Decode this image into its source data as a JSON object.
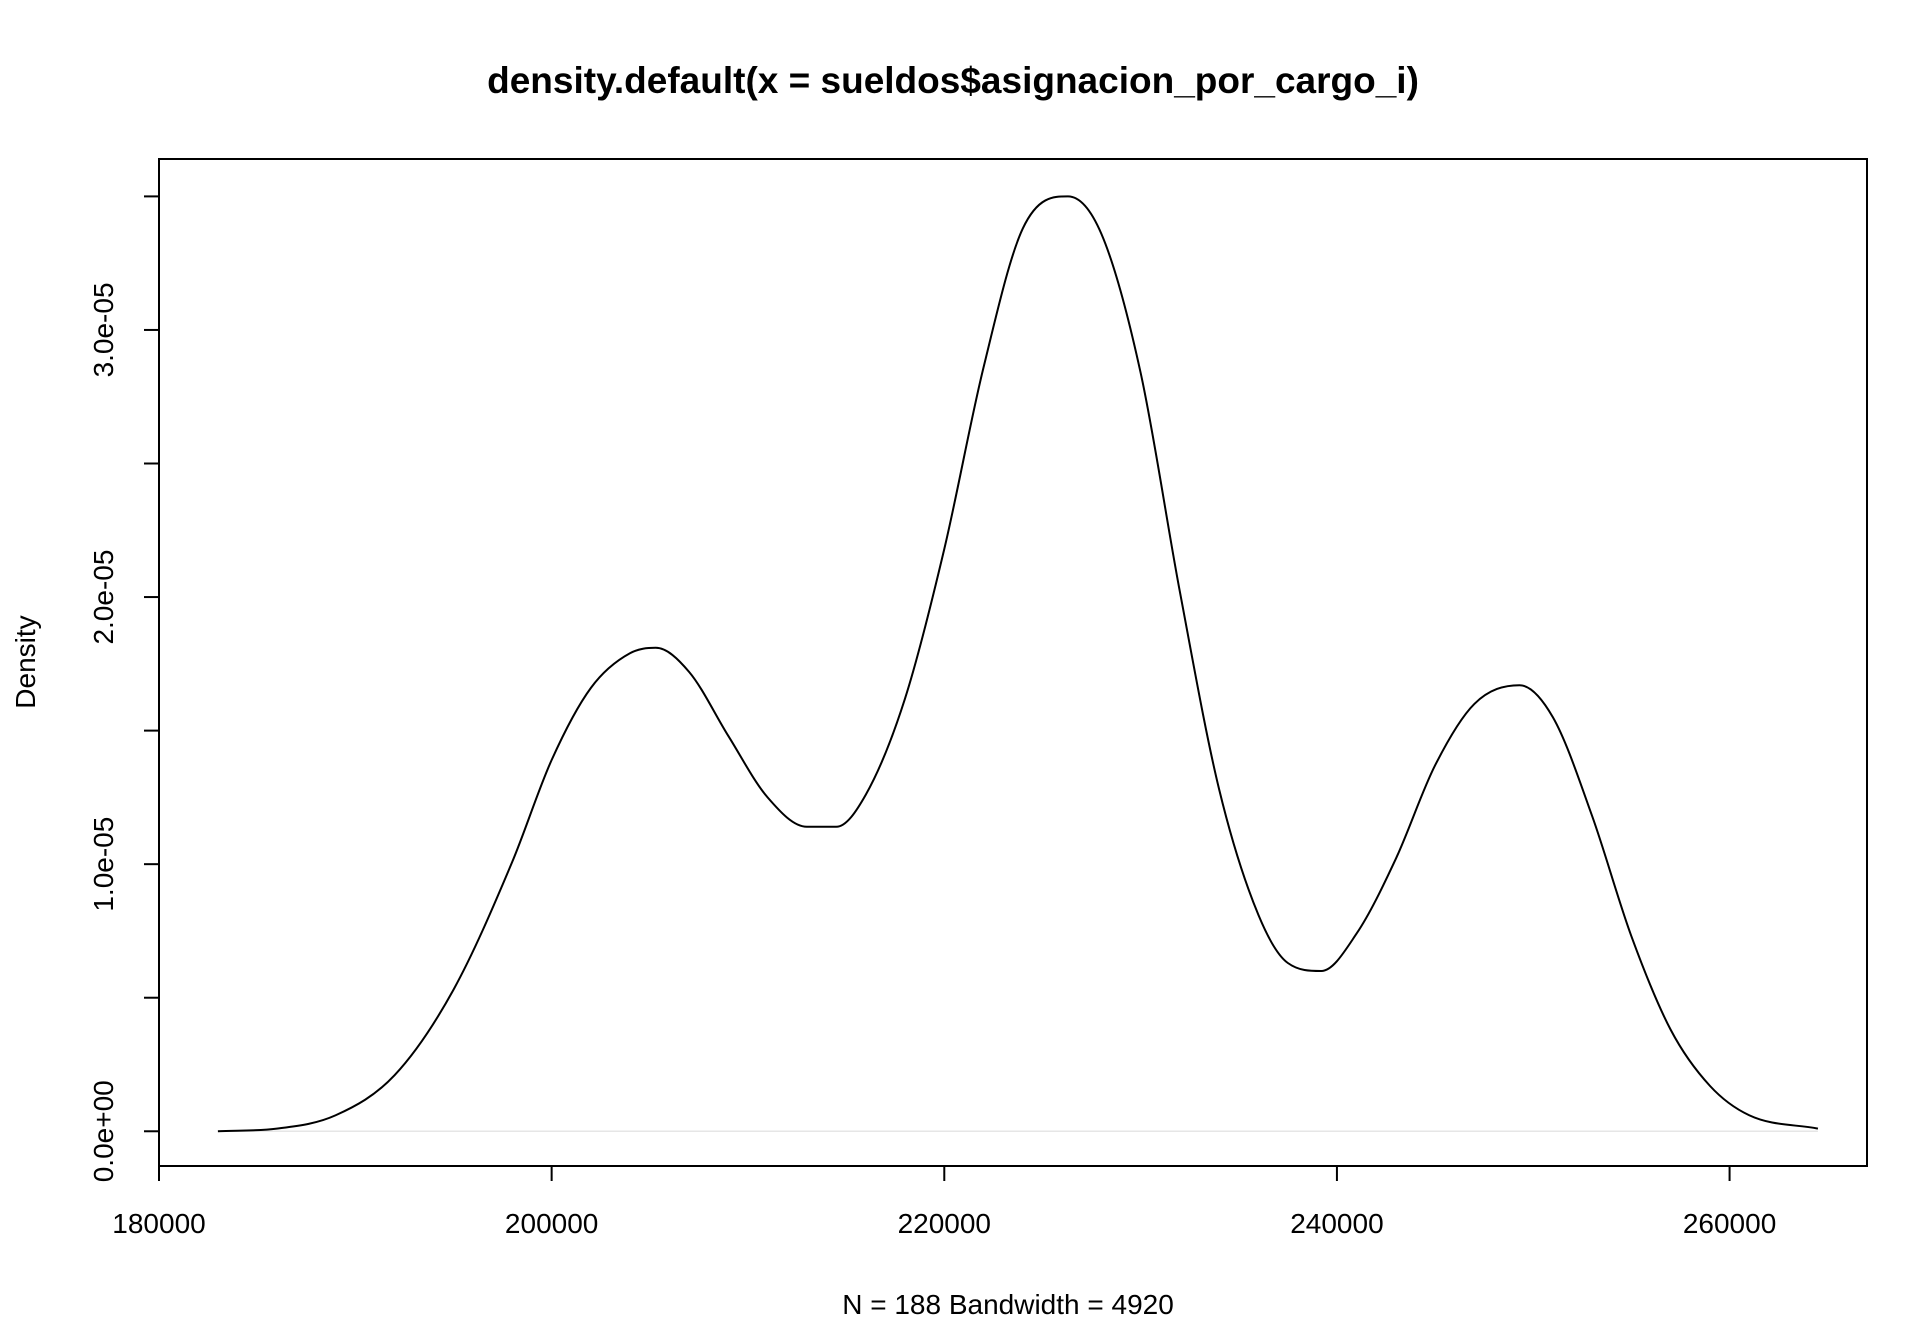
{
  "chart_data": {
    "type": "line",
    "title": "density.default(x = sueldos$asignacion_por_cargo_i)",
    "xlabel": "N = 188   Bandwidth = 4920",
    "ylabel": "Density",
    "xlim": [
      180000,
      267000
    ],
    "ylim": [
      -1.3e-06,
      3.64e-05
    ],
    "x_ticks": [
      180000,
      200000,
      220000,
      240000,
      260000
    ],
    "x_tick_labels": [
      "180000",
      "200000",
      "220000",
      "240000",
      "260000"
    ],
    "y_ticks": [
      0,
      5e-06,
      1e-05,
      1.5e-05,
      2e-05,
      2.5e-05,
      3e-05,
      3.5e-05
    ],
    "y_tick_labels": [
      "0.0e+00",
      "",
      "1.0e-05",
      "",
      "2.0e-05",
      "",
      "3.0e-05",
      ""
    ],
    "grid": false,
    "legend": false,
    "series": [
      {
        "x": [
          183000,
          186000,
          189000,
          192000,
          195000,
          198000,
          200000,
          202000,
          204000,
          205300,
          207000,
          209000,
          211000,
          213000,
          214500,
          216000,
          218000,
          220000,
          222000,
          224000,
          226300,
          228000,
          230000,
          232000,
          234000,
          236000,
          237500,
          239200,
          241000,
          243000,
          245000,
          247000,
          249300,
          251000,
          253000,
          255000,
          257000,
          259000,
          261000,
          264500
        ],
        "y": [
          0.0,
          1e-07,
          6e-07,
          2.1e-06,
          5.3e-06,
          1.01e-05,
          1.39e-05,
          1.66e-05,
          1.79e-05,
          1.81e-05,
          1.72e-05,
          1.48e-05,
          1.25e-05,
          1.14e-05,
          1.14e-05,
          1.26e-05,
          1.62e-05,
          2.18e-05,
          2.86e-05,
          3.38e-05,
          3.5e-05,
          3.36e-05,
          2.84e-05,
          2.02e-05,
          1.28e-05,
          8.1e-06,
          6.3e-06,
          6e-06,
          7.4e-06,
          1.02e-05,
          1.37e-05,
          1.6e-05,
          1.67e-05,
          1.55e-05,
          1.18e-05,
          7.3e-06,
          3.8e-06,
          1.7e-06,
          6e-07,
          1e-07
        ]
      }
    ]
  }
}
